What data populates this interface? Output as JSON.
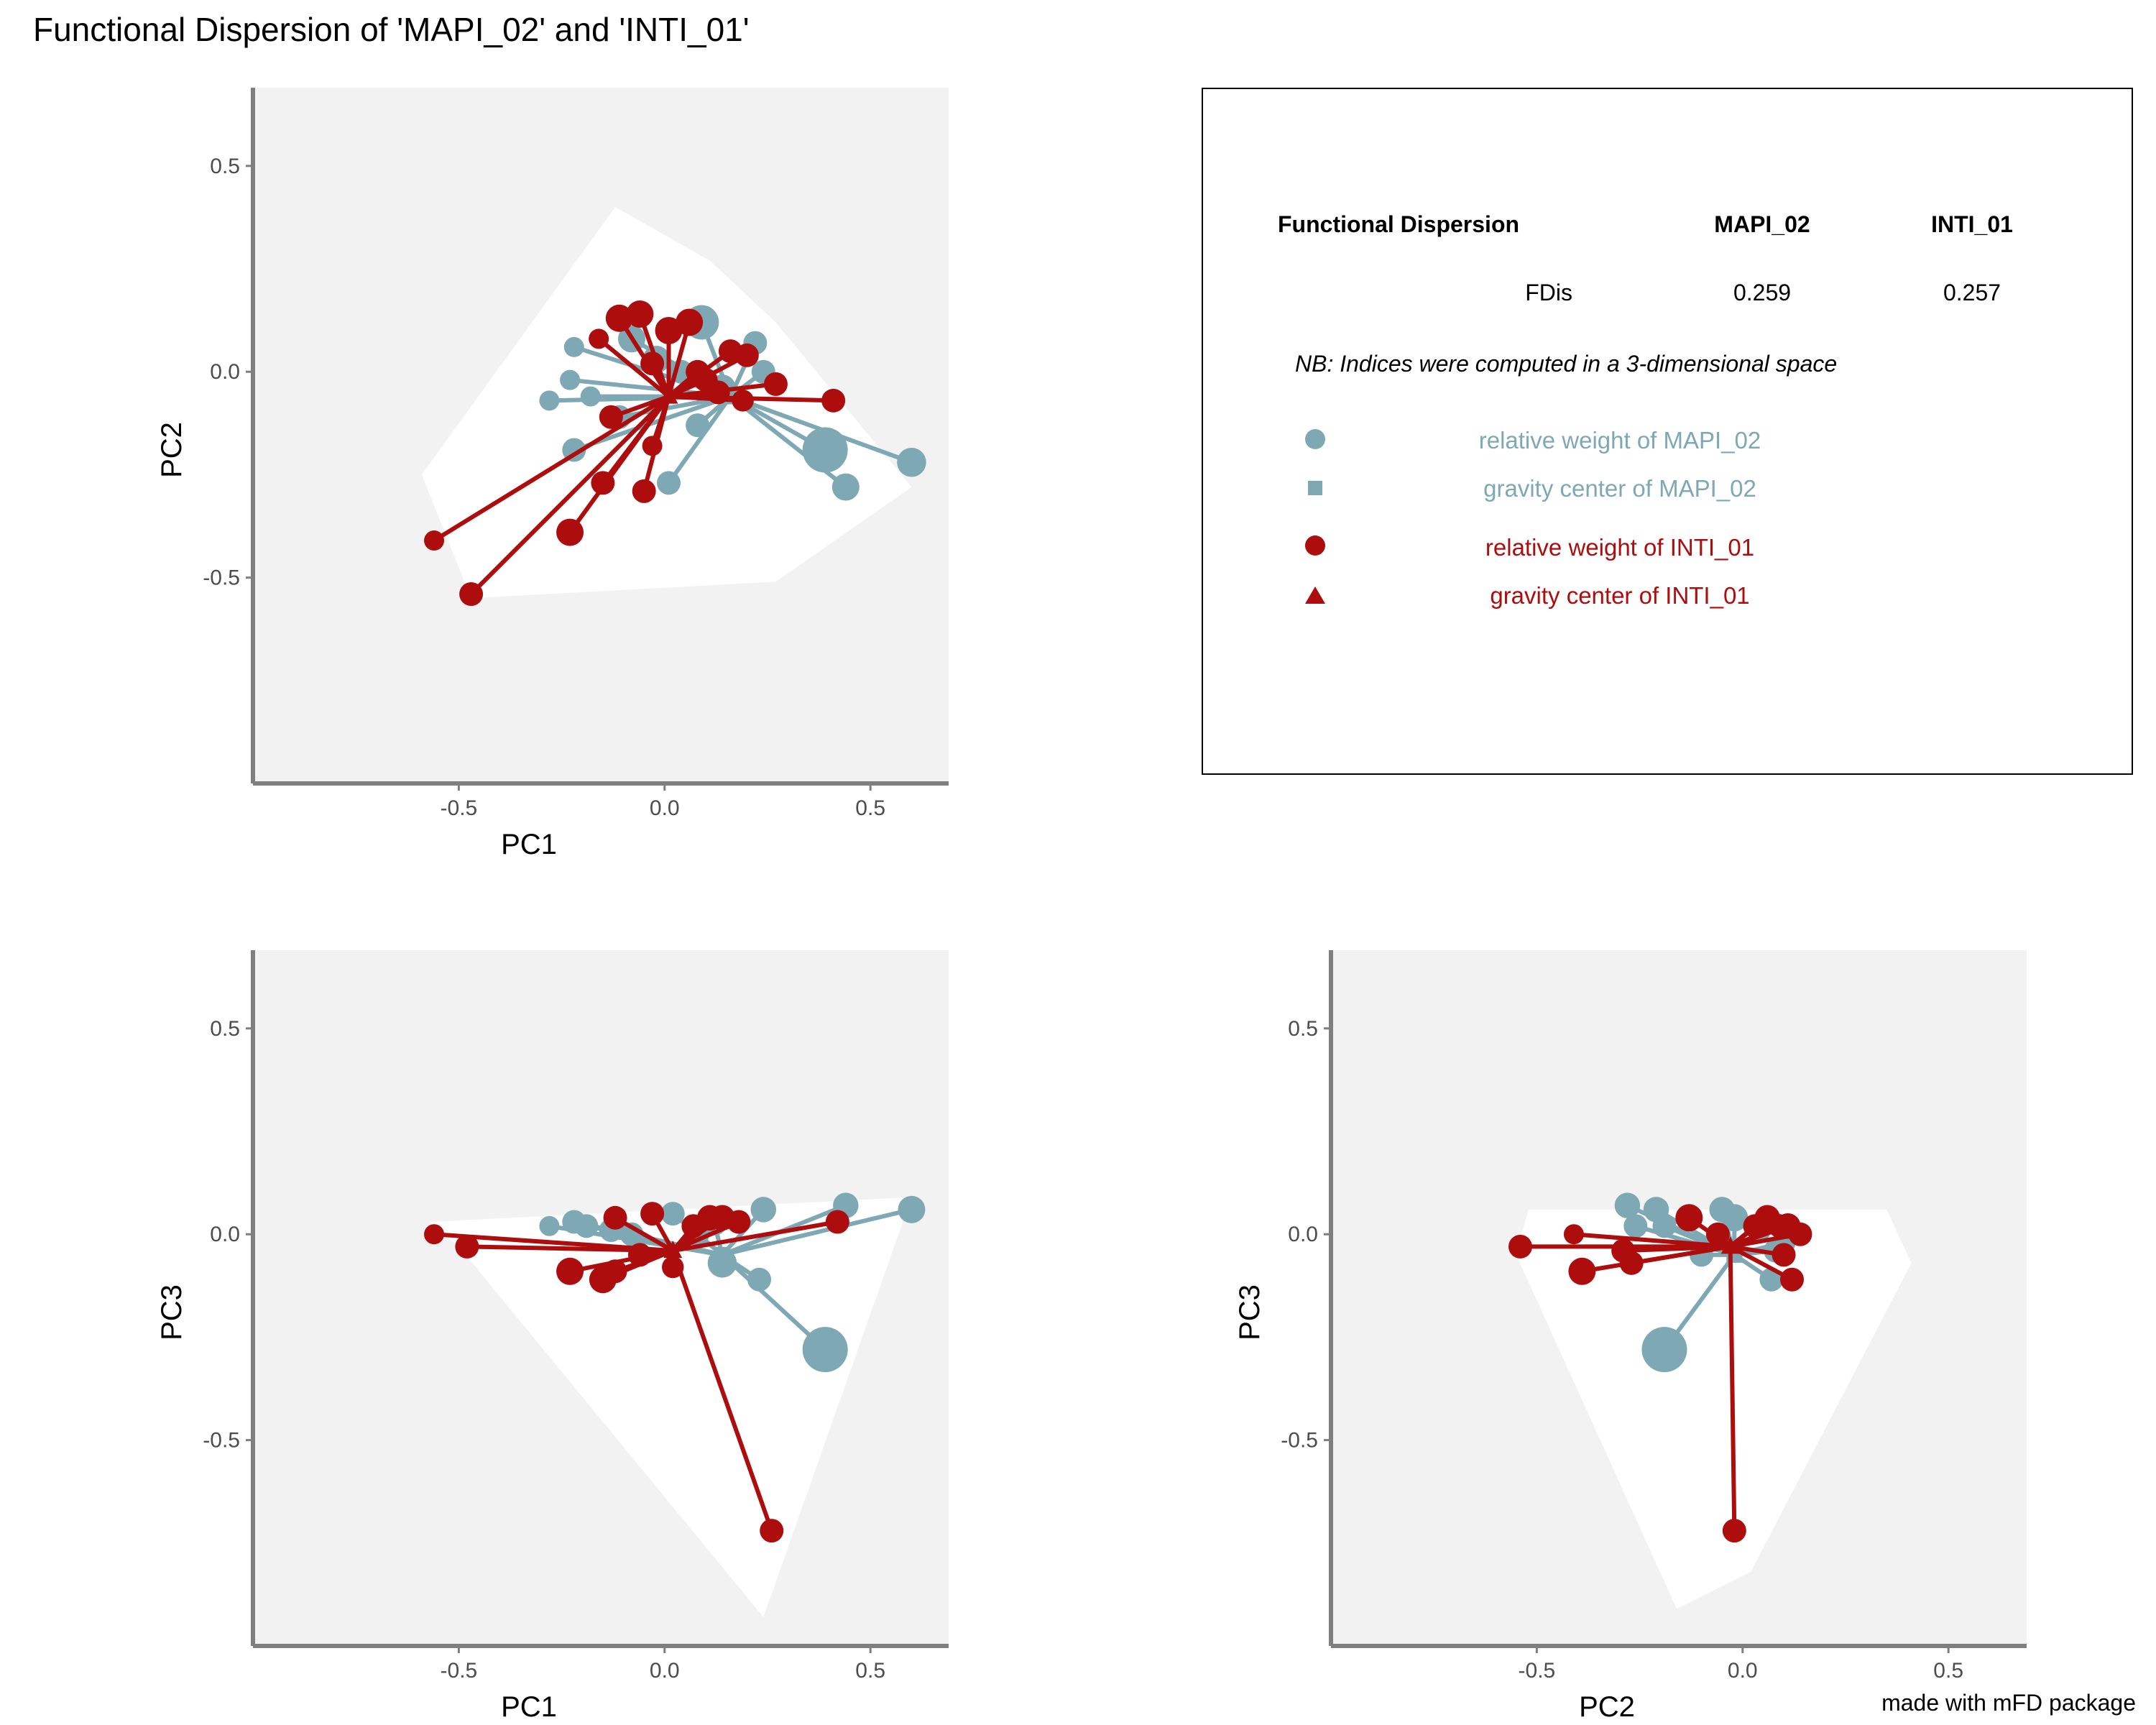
{
  "title": "Functional Dispersion of 'MAPI_02' and 'INTI_01'",
  "credit": "made with mFD package",
  "colors": {
    "mapi": "#7fa8b5",
    "inti": "#ad0d0d",
    "panel_bg": "#f2f2f2",
    "hull": "#ffffff",
    "axis": "#7f7f7f"
  },
  "legend": {
    "header": [
      "Functional Dispersion",
      "MAPI_02",
      "INTI_01"
    ],
    "row": [
      "FDis",
      "0.259",
      "0.257"
    ],
    "note": "NB: Indices were computed in a 3-dimensional space",
    "items": [
      {
        "label": "relative weight of MAPI_02",
        "symbol": "circle",
        "color": "#7fa8b5"
      },
      {
        "label": "gravity center of MAPI_02",
        "symbol": "square",
        "color": "#7fa8b5"
      },
      {
        "label": "relative weight of INTI_01",
        "symbol": "circle",
        "color": "#ad0d0d"
      },
      {
        "label": "gravity center of INTI_01",
        "symbol": "triangle",
        "color": "#ad0d0d"
      }
    ]
  },
  "chart_data": [
    {
      "type": "scatter",
      "xlabel": "PC1",
      "ylabel": "PC2",
      "xlim": [
        -1.0,
        0.69
      ],
      "ylim": [
        -1.0,
        0.69
      ],
      "xticks": [
        -0.5,
        0.0,
        0.5
      ],
      "yticks": [
        -0.5,
        0.0,
        0.5
      ],
      "xtick_labels": [
        "-0.5",
        "0.0",
        "0.5"
      ],
      "ytick_labels": [
        "-0.5",
        "0.0",
        "0.5"
      ],
      "grid": false,
      "hull": [
        [
          -0.12,
          0.4
        ],
        [
          0.11,
          0.27
        ],
        [
          0.27,
          0.12
        ],
        [
          0.6,
          -0.28
        ],
        [
          0.27,
          -0.51
        ],
        [
          -0.47,
          -0.55
        ],
        [
          -0.59,
          -0.25
        ]
      ],
      "series": [
        {
          "name": "MAPI_02",
          "center": [
            0.16,
            -0.06
          ],
          "points": [
            {
              "x": -0.22,
              "y": 0.06,
              "w": 0.2
            },
            {
              "x": -0.23,
              "y": -0.02,
              "w": 0.2
            },
            {
              "x": -0.28,
              "y": -0.07,
              "w": 0.2
            },
            {
              "x": -0.22,
              "y": -0.19,
              "w": 0.3
            },
            {
              "x": -0.11,
              "y": -0.11,
              "w": 0.3
            },
            {
              "x": 0.01,
              "y": -0.27,
              "w": 0.3
            },
            {
              "x": -0.08,
              "y": 0.08,
              "w": 0.4
            },
            {
              "x": 0.09,
              "y": 0.12,
              "w": 0.6
            },
            {
              "x": 0.22,
              "y": 0.07,
              "w": 0.3
            },
            {
              "x": 0.39,
              "y": -0.19,
              "w": 0.9
            },
            {
              "x": 0.6,
              "y": -0.22,
              "w": 0.45
            },
            {
              "x": 0.44,
              "y": -0.28,
              "w": 0.4
            },
            {
              "x": 0.14,
              "y": -0.04,
              "w": 0.4
            },
            {
              "x": 0.24,
              "y": 0.0,
              "w": 0.3
            },
            {
              "x": 0.04,
              "y": 0.0,
              "w": 0.3
            },
            {
              "x": -0.02,
              "y": 0.03,
              "w": 0.4
            },
            {
              "x": -0.18,
              "y": -0.06,
              "w": 0.2
            },
            {
              "x": 0.08,
              "y": -0.13,
              "w": 0.3
            }
          ]
        },
        {
          "name": "INTI_01",
          "center": [
            0.01,
            -0.06
          ],
          "points": [
            {
              "x": -0.56,
              "y": -0.41,
              "w": 0.2
            },
            {
              "x": -0.47,
              "y": -0.54,
              "w": 0.3
            },
            {
              "x": -0.23,
              "y": -0.39,
              "w": 0.4
            },
            {
              "x": -0.15,
              "y": -0.27,
              "w": 0.3
            },
            {
              "x": -0.05,
              "y": -0.29,
              "w": 0.3
            },
            {
              "x": -0.03,
              "y": -0.18,
              "w": 0.2
            },
            {
              "x": -0.13,
              "y": -0.11,
              "w": 0.3
            },
            {
              "x": -0.16,
              "y": 0.08,
              "w": 0.2
            },
            {
              "x": -0.11,
              "y": 0.13,
              "w": 0.4
            },
            {
              "x": -0.06,
              "y": 0.14,
              "w": 0.4
            },
            {
              "x": 0.01,
              "y": 0.1,
              "w": 0.4
            },
            {
              "x": 0.06,
              "y": 0.12,
              "w": 0.4
            },
            {
              "x": 0.1,
              "y": -0.02,
              "w": 0.3
            },
            {
              "x": 0.16,
              "y": 0.05,
              "w": 0.3
            },
            {
              "x": 0.2,
              "y": 0.04,
              "w": 0.3
            },
            {
              "x": 0.27,
              "y": -0.03,
              "w": 0.3
            },
            {
              "x": 0.41,
              "y": -0.07,
              "w": 0.3
            },
            {
              "x": 0.19,
              "y": -0.07,
              "w": 0.25
            },
            {
              "x": -0.03,
              "y": 0.02,
              "w": 0.3
            },
            {
              "x": 0.08,
              "y": 0.0,
              "w": 0.3
            },
            {
              "x": 0.13,
              "y": -0.05,
              "w": 0.3
            }
          ]
        }
      ]
    },
    {
      "type": "scatter",
      "xlabel": "PC1",
      "ylabel": "PC3",
      "xlim": [
        -1.0,
        0.69
      ],
      "ylim": [
        -1.0,
        0.69
      ],
      "xticks": [
        -0.5,
        0.0,
        0.5
      ],
      "yticks": [
        -0.5,
        0.0,
        0.5
      ],
      "xtick_labels": [
        "-0.5",
        "0.0",
        "0.5"
      ],
      "ytick_labels": [
        "-0.5",
        "0.0",
        "0.5"
      ],
      "grid": false,
      "hull": [
        [
          -0.57,
          0.03
        ],
        [
          0.6,
          0.09
        ],
        [
          0.24,
          -0.93
        ],
        [
          -0.5,
          -0.03
        ]
      ],
      "series": [
        {
          "name": "MAPI_02",
          "center": [
            0.14,
            -0.05
          ],
          "points": [
            {
              "x": -0.28,
              "y": 0.02,
              "w": 0.2
            },
            {
              "x": -0.22,
              "y": 0.03,
              "w": 0.3
            },
            {
              "x": -0.19,
              "y": 0.02,
              "w": 0.3
            },
            {
              "x": -0.13,
              "y": 0.01,
              "w": 0.3
            },
            {
              "x": 0.02,
              "y": 0.05,
              "w": 0.3
            },
            {
              "x": 0.08,
              "y": 0.0,
              "w": 0.3
            },
            {
              "x": 0.14,
              "y": -0.07,
              "w": 0.45
            },
            {
              "x": 0.24,
              "y": 0.06,
              "w": 0.35
            },
            {
              "x": 0.23,
              "y": -0.11,
              "w": 0.3
            },
            {
              "x": 0.39,
              "y": -0.28,
              "w": 0.9
            },
            {
              "x": 0.44,
              "y": 0.07,
              "w": 0.35
            },
            {
              "x": 0.6,
              "y": 0.06,
              "w": 0.4
            },
            {
              "x": 0.12,
              "y": 0.03,
              "w": 0.4
            },
            {
              "x": -0.08,
              "y": 0.0,
              "w": 0.3
            }
          ]
        },
        {
          "name": "INTI_01",
          "center": [
            0.02,
            -0.04
          ],
          "points": [
            {
              "x": -0.56,
              "y": 0.0,
              "w": 0.2
            },
            {
              "x": -0.48,
              "y": -0.03,
              "w": 0.3
            },
            {
              "x": -0.23,
              "y": -0.09,
              "w": 0.4
            },
            {
              "x": -0.15,
              "y": -0.11,
              "w": 0.4
            },
            {
              "x": -0.12,
              "y": -0.09,
              "w": 0.3
            },
            {
              "x": -0.12,
              "y": 0.04,
              "w": 0.3
            },
            {
              "x": -0.03,
              "y": 0.05,
              "w": 0.3
            },
            {
              "x": 0.07,
              "y": 0.02,
              "w": 0.3
            },
            {
              "x": 0.11,
              "y": 0.04,
              "w": 0.35
            },
            {
              "x": 0.14,
              "y": 0.04,
              "w": 0.35
            },
            {
              "x": 0.18,
              "y": 0.03,
              "w": 0.3
            },
            {
              "x": 0.42,
              "y": 0.03,
              "w": 0.3
            },
            {
              "x": 0.26,
              "y": -0.72,
              "w": 0.3
            },
            {
              "x": -0.06,
              "y": -0.05,
              "w": 0.3
            },
            {
              "x": 0.02,
              "y": -0.08,
              "w": 0.25
            }
          ]
        }
      ]
    },
    {
      "type": "scatter",
      "xlabel": "PC2",
      "ylabel": "PC3",
      "xlim": [
        -1.0,
        0.69
      ],
      "ylim": [
        -1.0,
        0.69
      ],
      "xticks": [
        -0.5,
        0.0,
        0.5
      ],
      "yticks": [
        -0.5,
        0.0,
        0.5
      ],
      "xtick_labels": [
        "-0.5",
        "0.0",
        "0.5"
      ],
      "ytick_labels": [
        "-0.5",
        "0.0",
        "0.5"
      ],
      "grid": false,
      "hull": [
        [
          -0.52,
          0.06
        ],
        [
          0.35,
          0.06
        ],
        [
          0.41,
          -0.07
        ],
        [
          0.02,
          -0.82
        ],
        [
          -0.16,
          -0.91
        ],
        [
          -0.55,
          -0.05
        ]
      ],
      "series": [
        {
          "name": "MAPI_02",
          "center": [
            -0.02,
            -0.05
          ],
          "points": [
            {
              "x": -0.28,
              "y": 0.07,
              "w": 0.35
            },
            {
              "x": -0.21,
              "y": 0.06,
              "w": 0.35
            },
            {
              "x": -0.26,
              "y": 0.02,
              "w": 0.3
            },
            {
              "x": -0.19,
              "y": 0.02,
              "w": 0.3
            },
            {
              "x": -0.19,
              "y": -0.28,
              "w": 0.9
            },
            {
              "x": -0.05,
              "y": 0.06,
              "w": 0.35
            },
            {
              "x": -0.02,
              "y": 0.04,
              "w": 0.4
            },
            {
              "x": 0.04,
              "y": 0.01,
              "w": 0.3
            },
            {
              "x": 0.07,
              "y": -0.11,
              "w": 0.3
            },
            {
              "x": 0.08,
              "y": -0.04,
              "w": 0.3
            },
            {
              "x": -0.1,
              "y": -0.05,
              "w": 0.3
            },
            {
              "x": 0.1,
              "y": -0.02,
              "w": 0.3
            }
          ]
        },
        {
          "name": "INTI_01",
          "center": [
            -0.03,
            -0.03
          ],
          "points": [
            {
              "x": -0.54,
              "y": -0.03,
              "w": 0.3
            },
            {
              "x": -0.41,
              "y": 0.0,
              "w": 0.2
            },
            {
              "x": -0.39,
              "y": -0.09,
              "w": 0.4
            },
            {
              "x": -0.29,
              "y": -0.04,
              "w": 0.3
            },
            {
              "x": -0.27,
              "y": -0.07,
              "w": 0.3
            },
            {
              "x": -0.13,
              "y": 0.04,
              "w": 0.4
            },
            {
              "x": -0.06,
              "y": 0.0,
              "w": 0.3
            },
            {
              "x": 0.03,
              "y": 0.02,
              "w": 0.3
            },
            {
              "x": 0.06,
              "y": 0.04,
              "w": 0.35
            },
            {
              "x": 0.09,
              "y": 0.02,
              "w": 0.3
            },
            {
              "x": 0.11,
              "y": 0.02,
              "w": 0.35
            },
            {
              "x": 0.14,
              "y": 0.0,
              "w": 0.3
            },
            {
              "x": 0.12,
              "y": -0.11,
              "w": 0.3
            },
            {
              "x": -0.02,
              "y": -0.72,
              "w": 0.3
            },
            {
              "x": 0.1,
              "y": -0.05,
              "w": 0.3
            }
          ]
        }
      ]
    }
  ]
}
